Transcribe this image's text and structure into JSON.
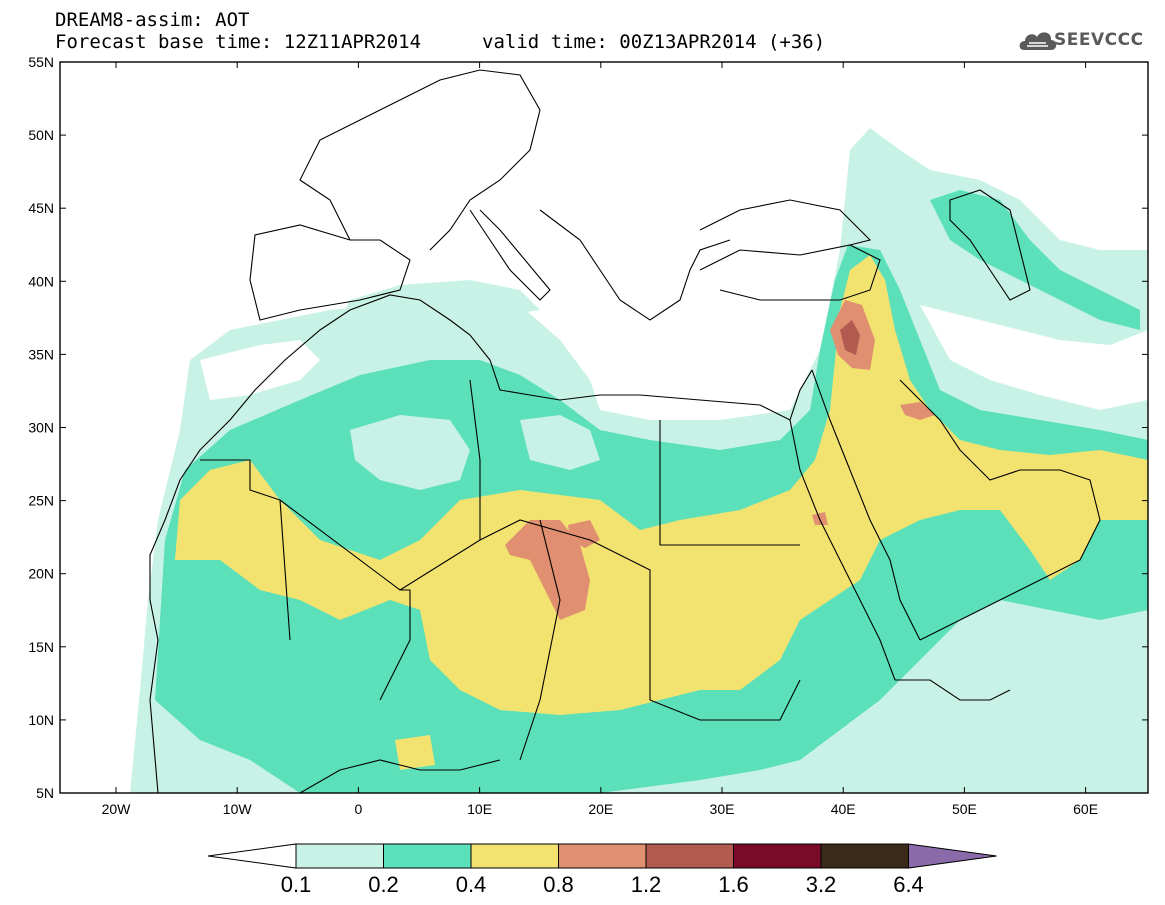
{
  "header": {
    "title": "DREAM8-assim: AOT",
    "base_time": "Forecast base time: 12Z11APR2014",
    "valid_time": "valid time: 00Z13APR2014 (+36)",
    "logo_text": "SEEVCCC",
    "logo_icon": "cloud-icon"
  },
  "map": {
    "lat_labels": [
      "55N",
      "50N",
      "45N",
      "40N",
      "35N",
      "30N",
      "25N",
      "20N",
      "15N",
      "10N",
      "5N"
    ],
    "lon_labels": [
      "20W",
      "10W",
      "0",
      "10E",
      "20E",
      "30E",
      "40E",
      "50E",
      "60E"
    ]
  },
  "colorbar": {
    "labels": [
      "0.1",
      "0.2",
      "0.4",
      "0.8",
      "1.2",
      "1.6",
      "3.2",
      "6.4"
    ],
    "colors": [
      "#ffffff",
      "#c8f2e6",
      "#5ce0b9",
      "#f2e370",
      "#e09070",
      "#b25a50",
      "#7a0a2a",
      "#3a2a1a",
      "#8a6aa8"
    ]
  },
  "colors": {
    "aot_0_1": "#c8f2e6",
    "aot_0_2": "#5ce0b9",
    "aot_0_4": "#f2e370",
    "aot_0_8": "#e09070",
    "aot_1_2": "#b25a50"
  }
}
